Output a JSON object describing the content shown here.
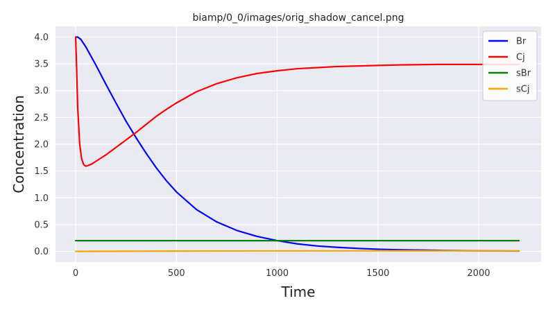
{
  "chart_data": {
    "type": "line",
    "title": "biamp/0_0/images/orig_shadow_cancel.png",
    "xlabel": "Time",
    "ylabel": "Concentration",
    "xlim": [
      -100,
      2310
    ],
    "ylim": [
      -0.2,
      4.2
    ],
    "xticks": [
      0,
      500,
      1000,
      1500,
      2000
    ],
    "yticks": [
      0.0,
      0.5,
      1.0,
      1.5,
      2.0,
      2.5,
      3.0,
      3.5,
      4.0
    ],
    "xtick_labels": [
      "0",
      "500",
      "1000",
      "1500",
      "2000"
    ],
    "ytick_labels": [
      "0.0",
      "0.5",
      "1.0",
      "1.5",
      "2.0",
      "2.5",
      "3.0",
      "3.5",
      "4.0"
    ],
    "grid": true,
    "legend_position": "top-right",
    "series": [
      {
        "name": "Br",
        "color": "#0000ff",
        "x": [
          0,
          10,
          25,
          50,
          100,
          150,
          200,
          250,
          300,
          350,
          400,
          450,
          500,
          600,
          700,
          800,
          900,
          1000,
          1100,
          1200,
          1300,
          1400,
          1500,
          1600,
          1800,
          2000,
          2200
        ],
        "y": [
          4.0,
          4.0,
          3.96,
          3.82,
          3.48,
          3.12,
          2.77,
          2.43,
          2.12,
          1.83,
          1.56,
          1.32,
          1.11,
          0.78,
          0.55,
          0.39,
          0.28,
          0.2,
          0.14,
          0.1,
          0.075,
          0.055,
          0.04,
          0.03,
          0.018,
          0.01,
          0.006
        ]
      },
      {
        "name": "Cj",
        "color": "#ff0000",
        "x": [
          0,
          5,
          10,
          20,
          30,
          40,
          50,
          60,
          80,
          100,
          150,
          200,
          250,
          300,
          350,
          400,
          450,
          500,
          600,
          700,
          800,
          900,
          1000,
          1100,
          1200,
          1300,
          1400,
          1500,
          1600,
          1800,
          2000,
          2200
        ],
        "y": [
          4.0,
          3.4,
          2.7,
          2.0,
          1.72,
          1.62,
          1.59,
          1.6,
          1.63,
          1.68,
          1.8,
          1.94,
          2.08,
          2.22,
          2.37,
          2.52,
          2.65,
          2.77,
          2.98,
          3.13,
          3.24,
          3.32,
          3.37,
          3.41,
          3.43,
          3.45,
          3.46,
          3.47,
          3.48,
          3.49,
          3.49,
          3.49
        ]
      },
      {
        "name": "sBr",
        "color": "#008000",
        "x": [
          0,
          2200
        ],
        "y": [
          0.2,
          0.2
        ]
      },
      {
        "name": "sCj",
        "color": "#ffa500",
        "x": [
          0,
          500,
          1000,
          1500,
          2200
        ],
        "y": [
          0.0,
          0.005,
          0.008,
          0.01,
          0.01
        ]
      }
    ]
  }
}
